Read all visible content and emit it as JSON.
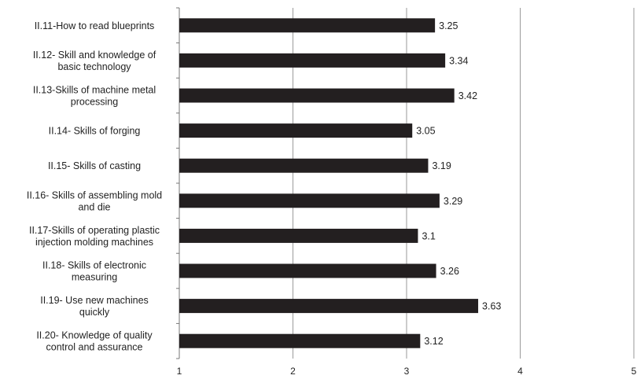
{
  "chart_data": {
    "type": "bar",
    "orientation": "horizontal",
    "title": "",
    "xlabel": "",
    "ylabel": "",
    "xlim": [
      1,
      5
    ],
    "x_ticks": [
      1,
      2,
      3,
      4,
      5
    ],
    "grid": "vertical",
    "categories": [
      [
        "II.11-How to read blueprints"
      ],
      [
        "II.12- Skill and knowledge of",
        "basic technology"
      ],
      [
        "II.13-Skills of machine metal",
        "processing"
      ],
      [
        "II.14- Skills of forging"
      ],
      [
        "II.15- Skills of casting"
      ],
      [
        "II.16- Skills of assembling mold",
        "and die"
      ],
      [
        "II.17-Skills of operating plastic",
        "injection molding machines"
      ],
      [
        "II.18- Skills of electronic",
        "measuring"
      ],
      [
        "II.19- Use new machines",
        "quickly"
      ],
      [
        "II.20- Knowledge of quality",
        "control and assurance"
      ]
    ],
    "values": [
      3.25,
      3.34,
      3.42,
      3.05,
      3.19,
      3.29,
      3.1,
      3.26,
      3.63,
      3.12
    ],
    "value_labels": [
      "3.25",
      "3.34",
      "3.42",
      "3.05",
      "3.19",
      "3.29",
      "3.1",
      "3.26",
      "3.63",
      "3.12"
    ],
    "bar_color": "#231f20",
    "grid_color": "#9a9a9a"
  }
}
